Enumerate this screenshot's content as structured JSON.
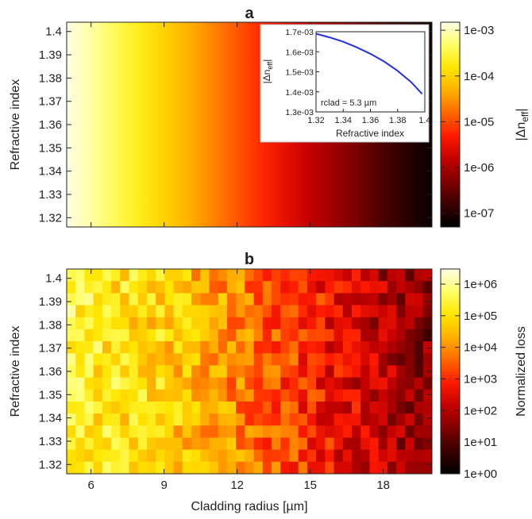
{
  "chart_data": [
    {
      "panel": "a",
      "type": "heatmap",
      "title": "a",
      "ylabel": "Refractive index",
      "xlim": [
        5,
        20
      ],
      "ylim": [
        1.316,
        1.404
      ],
      "ytick_labels": [
        "1.32",
        "1.33",
        "1.34",
        "1.35",
        "1.36",
        "1.37",
        "1.38",
        "1.39",
        "1.4"
      ],
      "xtick_values": [
        6,
        9,
        12,
        15,
        18
      ],
      "colorbar": {
        "label": "|Δn_eff|",
        "label_main": "|Δn",
        "label_sub": "eff",
        "label_end": "|",
        "scale": "log",
        "range": [
          5e-08,
          0.0015
        ],
        "tick_labels": [
          "1e-03",
          "1e-04",
          "1e-05",
          "1e-06",
          "1e-07"
        ],
        "tick_values": [
          0.001,
          0.0001,
          1e-05,
          1e-06,
          1e-07
        ]
      },
      "z_by_x": {
        "x": [
          5.0,
          6.0,
          7.0,
          8.0,
          9.0,
          10.0,
          11.0,
          12.0,
          13.0,
          14.0,
          15.0,
          16.0,
          17.0,
          18.0,
          19.0,
          20.0
        ],
        "dn_eff": [
          0.0017,
          0.0008,
          0.0004,
          0.0002,
          0.0001,
          5e-05,
          2.5e-05,
          1.2e-05,
          6e-06,
          3e-06,
          1.5e-06,
          8e-07,
          4e-07,
          2e-07,
          1.1e-07,
          6e-08
        ]
      },
      "inset": {
        "type": "line",
        "xlabel": "Refractive index",
        "ylabel": "|Δn_eff|",
        "ylabel_main": "|Δn",
        "ylabel_sub": "eff",
        "ylabel_end": "|",
        "annotation": "rclad = 5.3 µm",
        "xlim": [
          1.32,
          1.4
        ],
        "ylim": [
          0.0013,
          0.0017
        ],
        "xtick_labels": [
          "1.32",
          "1.34",
          "1.36",
          "1.38",
          "1.4"
        ],
        "ytick_labels": [
          "1.3e-03",
          "1.4e-03",
          "1.5e-03",
          "1.6e-03",
          "1.7e-03"
        ],
        "series_color": "#2233dd",
        "x": [
          1.32,
          1.33,
          1.34,
          1.35,
          1.36,
          1.37,
          1.38,
          1.39,
          1.398
        ],
        "y": [
          0.00169,
          0.001672,
          0.00165,
          0.001622,
          0.00159,
          0.001552,
          0.001505,
          0.001448,
          0.00139
        ]
      }
    },
    {
      "panel": "b",
      "type": "heatmap",
      "title": "b",
      "xlabel": "Cladding radius [µm]",
      "ylabel": "Refractive index",
      "xlim": [
        5,
        20
      ],
      "ylim": [
        1.316,
        1.404
      ],
      "grid_cols": 41,
      "grid_rows": 17,
      "xtick_labels": [
        "6",
        "9",
        "12",
        "15",
        "18"
      ],
      "xtick_values": [
        6,
        9,
        12,
        15,
        18
      ],
      "ytick_labels": [
        "1.32",
        "1.33",
        "1.34",
        "1.35",
        "1.36",
        "1.37",
        "1.38",
        "1.39",
        "1.4"
      ],
      "colorbar": {
        "label": "Normalized loss",
        "scale": "log",
        "range": [
          1,
          3000000.0
        ],
        "tick_labels": [
          "1e+06",
          "1e+05",
          "1e+04",
          "1e+03",
          "1e+02",
          "1e+01",
          "1e+00"
        ],
        "tick_values": [
          1000000.0,
          100000.0,
          10000.0,
          1000.0,
          100.0,
          10.0,
          1
        ]
      },
      "trend": {
        "x": [
          5,
          9,
          12,
          15,
          18,
          20
        ],
        "log10_loss": [
          5.4,
          4.8,
          3.9,
          3.0,
          2.0,
          1.4
        ]
      }
    }
  ],
  "colormap": [
    "#000000",
    "#3a0000",
    "#800000",
    "#c40000",
    "#ff1a00",
    "#ff6600",
    "#ffb000",
    "#ffe600",
    "#ffff66",
    "#ffffe8"
  ]
}
